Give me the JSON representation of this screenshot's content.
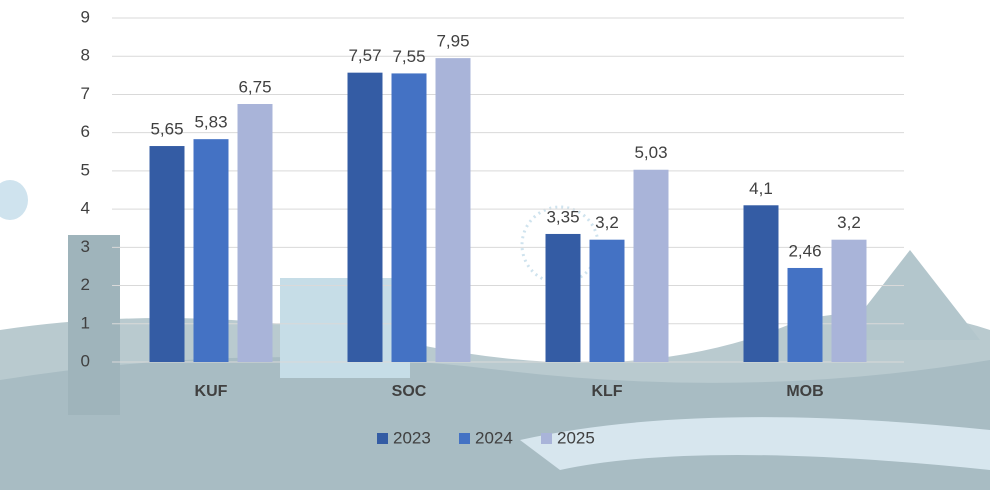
{
  "chart_data": {
    "type": "bar",
    "categories": [
      "KUF",
      "SOC",
      "KLF",
      "MOB"
    ],
    "series": [
      {
        "name": "2023",
        "color": "#345ca4",
        "values": [
          5.65,
          7.57,
          3.35,
          4.1
        ],
        "value_labels": [
          "5,65",
          "7,57",
          "3,35",
          "4,1"
        ]
      },
      {
        "name": "2024",
        "color": "#4472c4",
        "values": [
          5.83,
          7.55,
          3.2,
          2.46
        ],
        "value_labels": [
          "5,83",
          "7,55",
          "3,2",
          "2,46"
        ]
      },
      {
        "name": "2025",
        "color": "#a9b4d9",
        "values": [
          6.75,
          7.95,
          5.03,
          3.2
        ],
        "value_labels": [
          "6,75",
          "7,95",
          "5,03",
          "3,2"
        ]
      }
    ],
    "ylim": [
      0,
      9
    ],
    "yticks": [
      0,
      1,
      2,
      3,
      4,
      5,
      6,
      7,
      8,
      9
    ],
    "grid": true,
    "legend": "bottom"
  }
}
